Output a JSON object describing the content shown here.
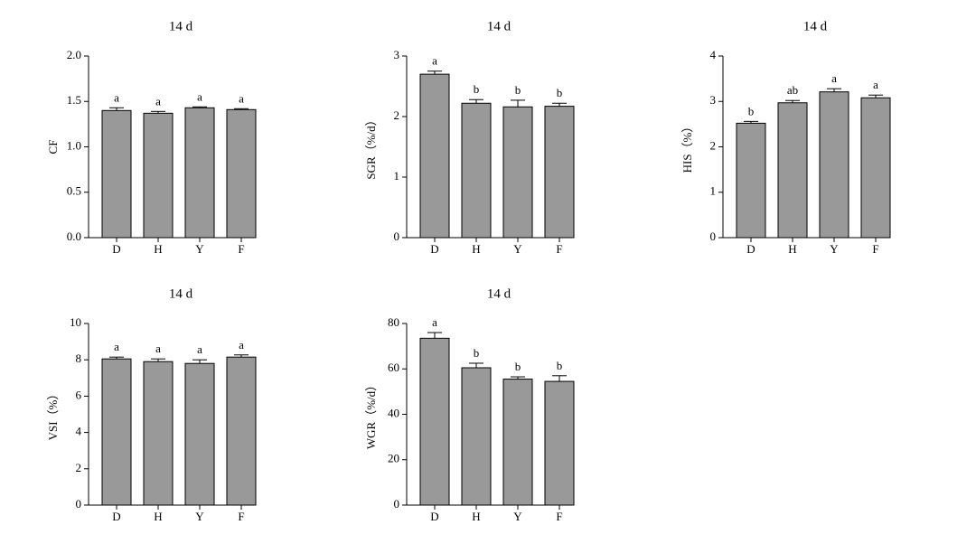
{
  "chart_data": [
    {
      "type": "bar",
      "title": "14 d",
      "ylabel": "CF",
      "categories": [
        "D",
        "H",
        "Y",
        "F"
      ],
      "values": [
        1.4,
        1.37,
        1.43,
        1.41
      ],
      "errors": [
        0.03,
        0.02,
        0.01,
        0.01
      ],
      "annotations": [
        "a",
        "a",
        "a",
        "a"
      ],
      "color": "#999999",
      "ylim": [
        0,
        2
      ],
      "yticks": [
        {
          "value": 0,
          "label": "0.0"
        },
        {
          "value": 0.5,
          "label": "0.5"
        },
        {
          "value": 1,
          "label": "1.0"
        },
        {
          "value": 1.5,
          "label": "1.5"
        },
        {
          "value": 2,
          "label": "2.0"
        }
      ]
    },
    {
      "type": "bar",
      "title": "14 d",
      "ylabel": "SGR（%/d）",
      "categories": [
        "D",
        "H",
        "Y",
        "F"
      ],
      "values": [
        2.7,
        2.22,
        2.16,
        2.17
      ],
      "errors": [
        0.05,
        0.06,
        0.11,
        0.05
      ],
      "annotations": [
        "a",
        "b",
        "b",
        "b"
      ],
      "color": "#999999",
      "ylim": [
        0,
        3
      ],
      "yticks": [
        0,
        1,
        2,
        3
      ]
    },
    {
      "type": "bar",
      "title": "14 d",
      "ylabel": "HIS（%）",
      "categories": [
        "D",
        "H",
        "Y",
        "F"
      ],
      "values": [
        2.52,
        2.97,
        3.21,
        3.08
      ],
      "errors": [
        0.04,
        0.05,
        0.07,
        0.06
      ],
      "annotations": [
        "b",
        "ab",
        "a",
        "a"
      ],
      "color": "#999999",
      "ylim": [
        0,
        4
      ],
      "yticks": [
        0,
        1,
        2,
        3,
        4
      ]
    },
    {
      "type": "bar",
      "title": "14 d",
      "ylabel": "VSI（%）",
      "categories": [
        "D",
        "H",
        "Y",
        "F"
      ],
      "values": [
        8.05,
        7.9,
        7.8,
        8.15
      ],
      "errors": [
        0.1,
        0.15,
        0.2,
        0.12
      ],
      "annotations": [
        "a",
        "a",
        "a",
        "a"
      ],
      "color": "#999999",
      "ylim": [
        0,
        10
      ],
      "yticks": [
        0,
        2,
        4,
        6,
        8,
        10
      ]
    },
    {
      "type": "bar",
      "title": "14 d",
      "ylabel": "WGR（%/d）",
      "categories": [
        "D",
        "H",
        "Y",
        "F"
      ],
      "values": [
        73.5,
        60.5,
        55.5,
        54.5
      ],
      "errors": [
        2.5,
        2.0,
        1.0,
        2.5
      ],
      "annotations": [
        "a",
        "b",
        "b",
        "b"
      ],
      "color": "#999999",
      "ylim": [
        0,
        80
      ],
      "yticks": [
        0,
        20,
        40,
        60,
        80
      ]
    }
  ]
}
